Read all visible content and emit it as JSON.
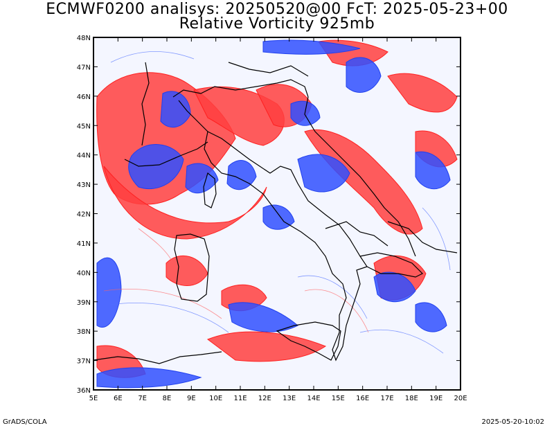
{
  "header": {
    "title_line1": "ECMWF0200 analisys: 20250520@00 FcT: 2025-05-23+00",
    "title_line2": "Relative Vorticity 925mb"
  },
  "map": {
    "lat_labels": [
      "48N",
      "47N",
      "46N",
      "45N",
      "44N",
      "43N",
      "42N",
      "41N",
      "40N",
      "39N",
      "38N",
      "37N",
      "36N"
    ],
    "lon_labels": [
      "5E",
      "6E",
      "7E",
      "8E",
      "9E",
      "10E",
      "11E",
      "12E",
      "13E",
      "14E",
      "15E",
      "16E",
      "17E",
      "18E",
      "19E",
      "20E"
    ],
    "colors": {
      "positive": "#ff3b3b",
      "negative": "#3a5bff",
      "coast": "#000000"
    }
  },
  "footer": {
    "left": "GrADS/COLA",
    "right": "2025-05-20-10:02"
  }
}
